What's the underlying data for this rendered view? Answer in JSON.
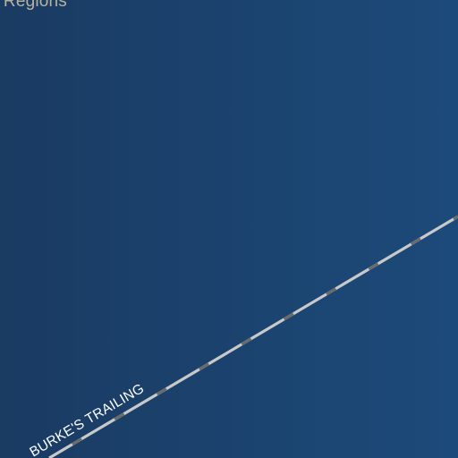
{
  "map": {
    "region_label": "l Regions",
    "route_label": "BURKE'S TRAILING"
  },
  "colors": {
    "background_left": "#1a3b62",
    "background_right": "#1c4a7a",
    "route_line": "#c9c9c9",
    "route_dash": "#6b6b6b",
    "label_region": "#b9b39c",
    "label_route": "#ffffff"
  }
}
